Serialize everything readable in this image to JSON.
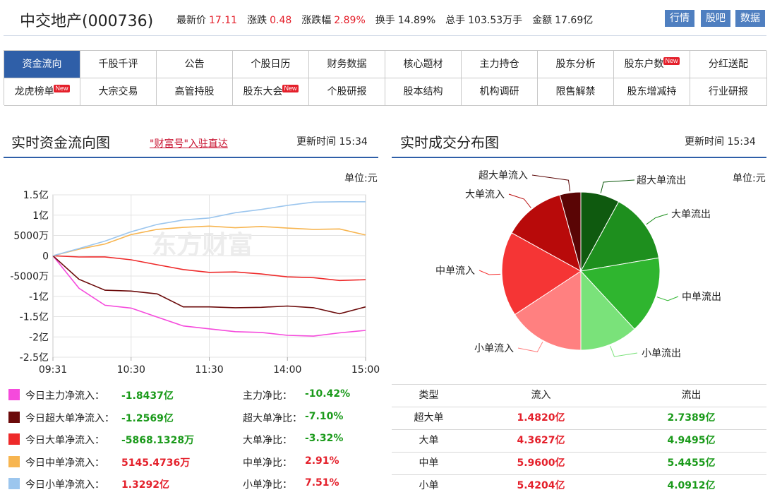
{
  "header": {
    "stock_name": "中交地产(000736)",
    "stats": [
      {
        "label": "最新价",
        "value": "17.11",
        "tone": "up"
      },
      {
        "label": "涨跌",
        "value": "0.48",
        "tone": "up"
      },
      {
        "label": "涨跌幅",
        "value": "2.89%",
        "tone": "up"
      },
      {
        "label": "换手",
        "value": "14.89%",
        "tone": "nrm"
      },
      {
        "label": "总手",
        "value": "103.53万手",
        "tone": "nrm"
      },
      {
        "label": "金额",
        "value": "17.69亿",
        "tone": "nrm"
      }
    ],
    "buttons": [
      "行情",
      "股吧",
      "数据"
    ]
  },
  "nav": {
    "row1": [
      {
        "label": "资金流向",
        "active": true,
        "new": false
      },
      {
        "label": "千股千评",
        "new": false
      },
      {
        "label": "公告",
        "new": false
      },
      {
        "label": "个股日历",
        "new": false
      },
      {
        "label": "财务数据",
        "new": false
      },
      {
        "label": "核心题材",
        "new": false
      },
      {
        "label": "主力持仓",
        "new": false
      },
      {
        "label": "股东分析",
        "new": false
      },
      {
        "label": "股东户数",
        "new": true
      },
      {
        "label": "分红送配",
        "new": false
      }
    ],
    "row2": [
      {
        "label": "龙虎榜单",
        "new": true
      },
      {
        "label": "大宗交易",
        "new": false
      },
      {
        "label": "高管持股",
        "new": false
      },
      {
        "label": "股东大会",
        "new": true
      },
      {
        "label": "个股研报",
        "new": false
      },
      {
        "label": "股本结构",
        "new": false
      },
      {
        "label": "机构调研",
        "new": false
      },
      {
        "label": "限售解禁",
        "new": false
      },
      {
        "label": "股东增减持",
        "new": false
      },
      {
        "label": "行业研报",
        "new": false
      }
    ],
    "new_badge": "New"
  },
  "left_panel": {
    "title": "实时资金流向图",
    "link": "\"财富号\"入驻直达",
    "update_label": "更新时间 15:34",
    "unit": "单位:元",
    "watermark": "东方财富"
  },
  "right_panel": {
    "title": "实时成交分布图",
    "update_label": "更新时间 15:34",
    "unit": "单位:元"
  },
  "summary": [
    {
      "name": "今日主力净流入：",
      "value": "-1.8437亿",
      "ratio_name": "主力净比：",
      "ratio": "-10.42%",
      "color": "#f54adc",
      "value_tone": "neg",
      "ratio_tone": "neg"
    },
    {
      "name": "今日超大单净流入：",
      "value": "-1.2569亿",
      "ratio_name": "超大单净比：",
      "ratio": "-7.10%",
      "color": "#6b0a0a",
      "value_tone": "neg",
      "ratio_tone": "neg"
    },
    {
      "name": "今日大单净流入：",
      "value": "-5868.1328万",
      "ratio_name": "大单净比：",
      "ratio": "-3.32%",
      "color": "#ee2a2a",
      "value_tone": "neg",
      "ratio_tone": "neg"
    },
    {
      "name": "今日中单净流入：",
      "value": "5145.4736万",
      "ratio_name": "中单净比：",
      "ratio": "2.91%",
      "color": "#f7b550",
      "value_tone": "pos",
      "ratio_tone": "pos"
    },
    {
      "name": "今日小单净流入：",
      "value": "1.3292亿",
      "ratio_name": "小单净比：",
      "ratio": "7.51%",
      "color": "#9cc6ee",
      "value_tone": "pos",
      "ratio_tone": "pos"
    }
  ],
  "table": {
    "headers": [
      "类型",
      "流入",
      "流出"
    ],
    "rows": [
      [
        "超大单",
        "1.4820亿",
        "2.7389亿"
      ],
      [
        "大单",
        "4.3627亿",
        "4.9495亿"
      ],
      [
        "中单",
        "5.9600亿",
        "5.4455亿"
      ],
      [
        "小单",
        "5.4204亿",
        "4.0912亿"
      ]
    ]
  },
  "chart_data": [
    {
      "type": "line",
      "x_ticks": [
        "09:31",
        "10:30",
        "11:30",
        "14:00",
        "15:00"
      ],
      "y_ticks": [
        "1.5亿",
        "1亿",
        "5000万",
        "0",
        "-5000万",
        "-1亿",
        "-1.5亿",
        "-2亿",
        "-2.5亿"
      ],
      "ylim": [
        -2.5,
        1.5
      ],
      "y_unit": "亿",
      "grid": true,
      "series": [
        {
          "name": "主力净流入",
          "color": "#f54adc",
          "values": [
            0,
            -0.8,
            -1.2,
            -1.3,
            -1.5,
            -1.75,
            -1.8,
            -1.85,
            -1.9,
            -1.95,
            -2.0,
            -1.9,
            -1.84
          ]
        },
        {
          "name": "超大单净流入",
          "color": "#6b0a0a",
          "values": [
            0,
            -0.6,
            -0.85,
            -0.85,
            -0.95,
            -1.25,
            -1.28,
            -1.28,
            -1.25,
            -1.25,
            -1.27,
            -1.45,
            -1.26
          ]
        },
        {
          "name": "大单净流入",
          "color": "#ee2a2a",
          "values": [
            0,
            -0.02,
            -0.05,
            -0.1,
            -0.2,
            -0.35,
            -0.4,
            -0.42,
            -0.45,
            -0.5,
            -0.55,
            -0.6,
            -0.59
          ]
        },
        {
          "name": "中单净流入",
          "color": "#f7b550",
          "values": [
            0,
            0.15,
            0.3,
            0.5,
            0.65,
            0.72,
            0.72,
            0.7,
            0.7,
            0.68,
            0.67,
            0.65,
            0.51
          ]
        },
        {
          "name": "小单净流入",
          "color": "#9cc6ee",
          "values": [
            0,
            0.2,
            0.35,
            0.6,
            0.75,
            0.88,
            0.95,
            1.05,
            1.15,
            1.22,
            1.32,
            1.35,
            1.33
          ]
        }
      ]
    },
    {
      "type": "pie",
      "labels": [
        "超大单流出",
        "大单流出",
        "中单流出",
        "小单流出",
        "小单流入",
        "中单流入",
        "大单流入",
        "超大单流入"
      ],
      "values": [
        2.7389,
        4.9495,
        5.4455,
        4.0912,
        5.4204,
        5.96,
        4.3627,
        1.482
      ],
      "colors": [
        "#0f5a0f",
        "#1e8f1e",
        "#2fb52f",
        "#7ae27a",
        "#ff8080",
        "#f53535",
        "#b80a0a",
        "#5a0505"
      ]
    }
  ]
}
